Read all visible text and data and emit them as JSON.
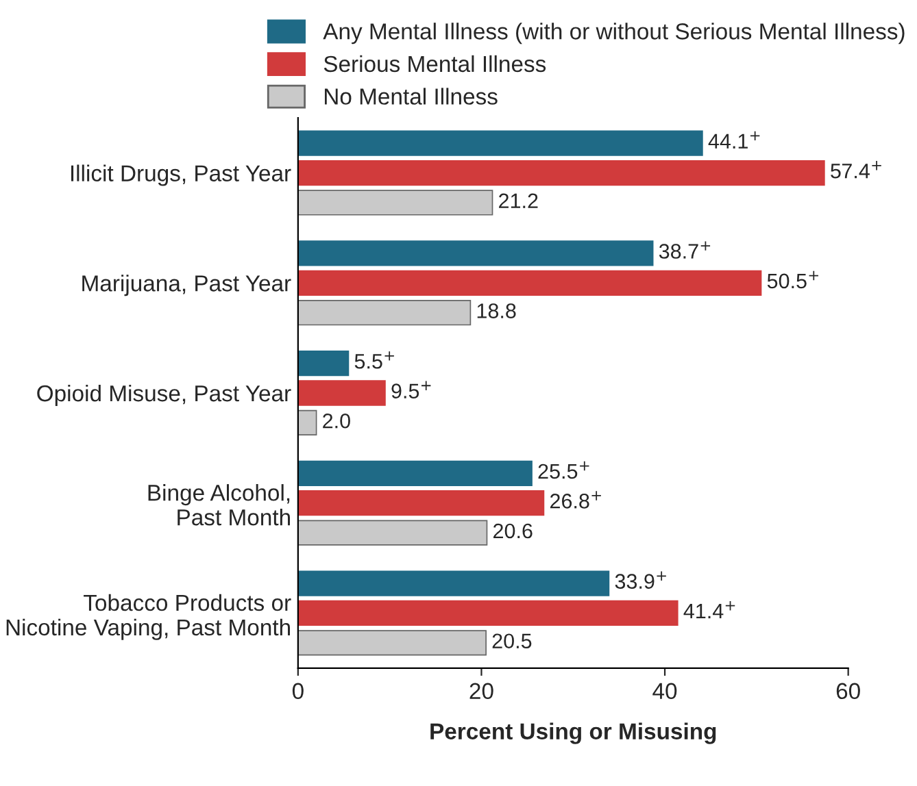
{
  "chart_data": {
    "type": "bar",
    "orientation": "horizontal",
    "xlabel": "Percent Using or Misusing",
    "categories": [
      "Illicit Drugs, Past Year",
      "Marijuana, Past Year",
      "Opioid Misuse, Past Year",
      "Binge Alcohol,\nPast Month",
      "Tobacco Products or\nNicotine Vaping, Past Month"
    ],
    "series": [
      {
        "name": "Any Mental Illness (with or without Serious Mental Illness)",
        "color": "#1f6a86",
        "values": [
          44.1,
          38.7,
          5.5,
          25.5,
          33.9
        ],
        "value_labels": [
          "44.1$^{+}$",
          "38.7$^{+}$",
          "5.5$^{+}$",
          "25.5$^{+}$",
          "33.9$^{+}$"
        ]
      },
      {
        "name": "Serious Mental Illness",
        "color": "#d13b3c",
        "values": [
          57.4,
          50.5,
          9.5,
          26.8,
          41.4
        ],
        "value_labels": [
          "57.4$^{+}$",
          "50.5$^{+}$",
          "9.5$^{+}$",
          "26.8$^{+}$",
          "41.4$^{+}$"
        ]
      },
      {
        "name": "No Mental Illness",
        "color": "#c9c9c9",
        "values": [
          21.2,
          18.8,
          2.0,
          20.6,
          20.5
        ],
        "value_labels": [
          "21.2",
          "18.8",
          "2.0",
          "20.6",
          "20.5"
        ]
      }
    ],
    "xlim": [
      0,
      60
    ],
    "xticks": [
      0,
      20,
      40,
      60
    ],
    "grid": false,
    "legend": "top"
  }
}
